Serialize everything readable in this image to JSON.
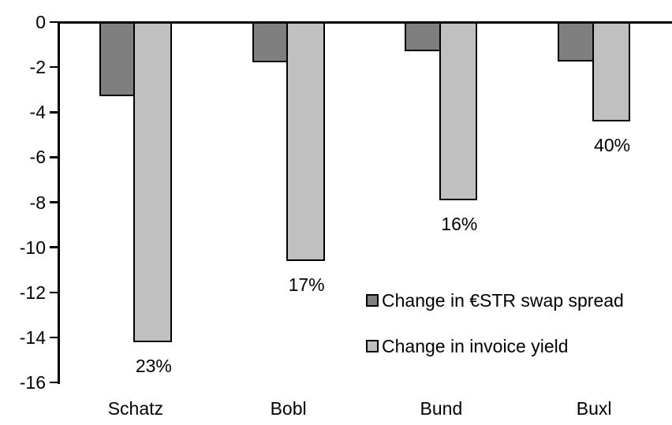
{
  "chart_data": {
    "type": "bar",
    "title": "",
    "xlabel": "",
    "ylabel": "",
    "categories": [
      "Schatz",
      "Bobl",
      "Bund",
      "Buxl"
    ],
    "series": [
      {
        "name": "Change in €STR swap spread",
        "color": "#7F7F7F",
        "values": [
          -3.3,
          -1.8,
          -1.3,
          -1.75
        ]
      },
      {
        "name": "Change in invoice yield",
        "color": "#C0C0C0",
        "values": [
          -14.2,
          -10.6,
          -7.9,
          -4.4
        ]
      }
    ],
    "bar_labels": {
      "series": "Change in invoice yield",
      "values": [
        "23%",
        "17%",
        "16%",
        "40%"
      ]
    },
    "yticks": [
      0,
      -2,
      -4,
      -6,
      -8,
      -10,
      -12,
      -14,
      -16
    ],
    "ylim": [
      -16,
      0
    ],
    "grid": false,
    "legend_position": "inside-right",
    "axis_color": "#000000",
    "text_color": "#000000",
    "background_color": "#FFFFFF"
  }
}
